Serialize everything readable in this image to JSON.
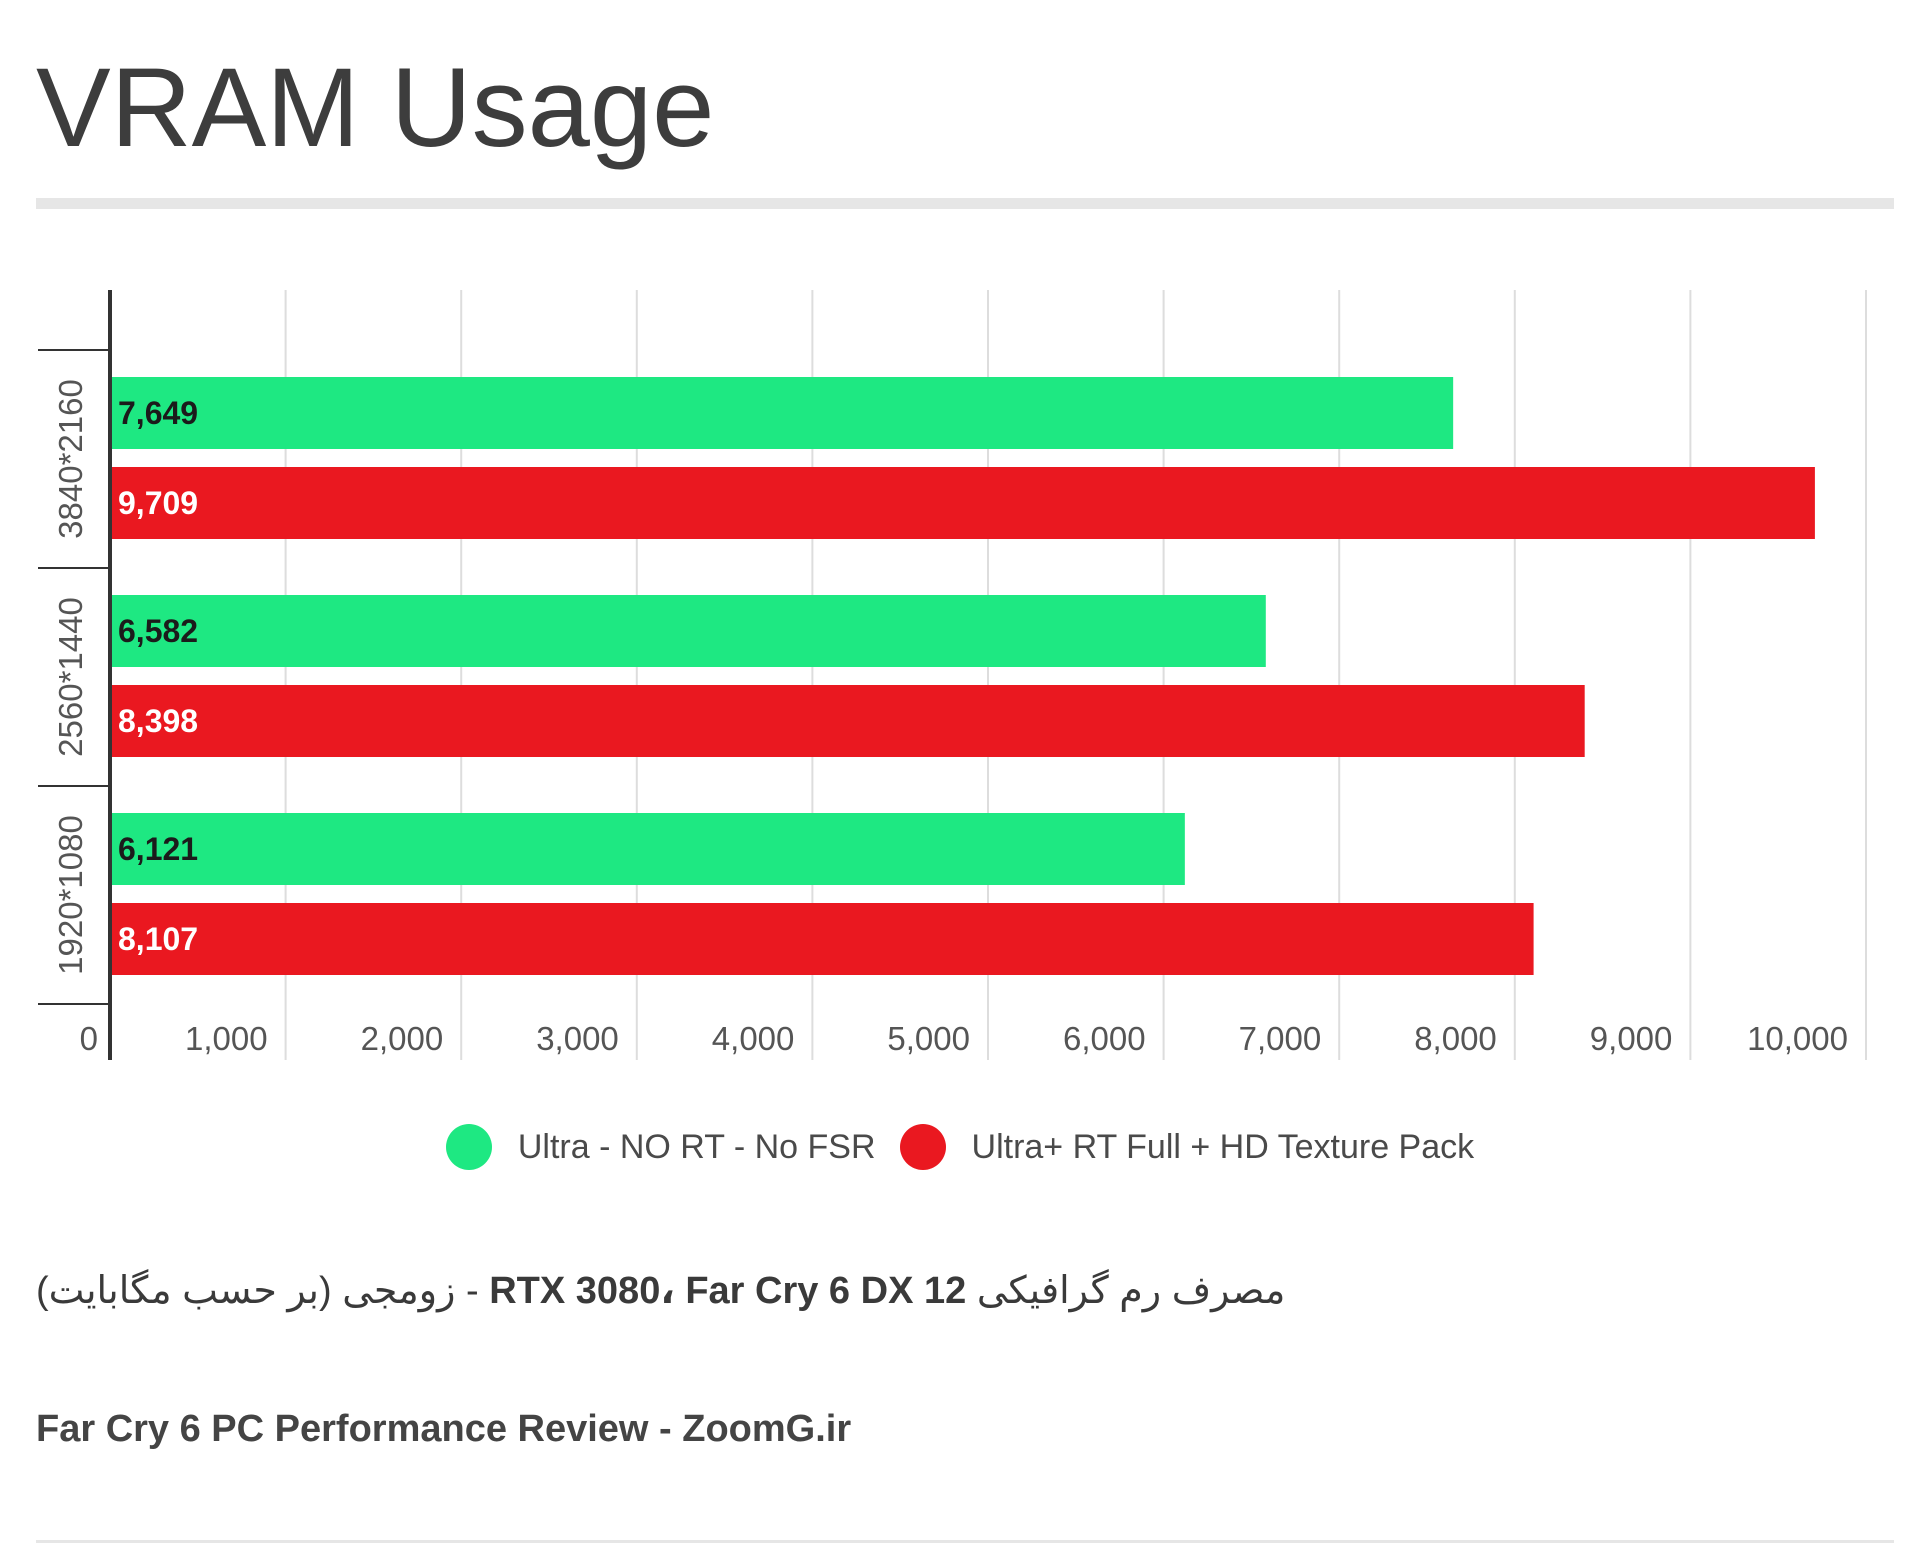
{
  "title": "VRAM Usage",
  "caption_arabic": "مصرف رم گرافیکی",
  "caption_latin": "RTX 3080، Far Cry 6 DX 12",
  "caption_tail": "- زومجی (بر حسب مگابایت)",
  "source": "Far Cry 6 PC Performance Review - ZoomG.ir",
  "colors": {
    "series1": "#1ee882",
    "series2": "#ea1820",
    "grid": "#dddddd",
    "axis": "#333333"
  },
  "chart_data": {
    "type": "bar",
    "orientation": "horizontal",
    "title": "VRAM Usage",
    "categories": [
      "3840*2160",
      "2560*1440",
      "1920*1080"
    ],
    "series": [
      {
        "name": "Ultra - NO RT - No FSR",
        "values": [
          7649,
          6582,
          6121
        ],
        "labels": [
          "7,649",
          "6,582",
          "6,121"
        ]
      },
      {
        "name": "Ultra+ RT Full + HD Texture Pack",
        "values": [
          9709,
          8398,
          8107
        ],
        "labels": [
          "9,709",
          "8,398",
          "8,107"
        ]
      }
    ],
    "xlim": [
      0,
      10000
    ],
    "ticks": [
      0,
      1000,
      2000,
      3000,
      4000,
      5000,
      6000,
      7000,
      8000,
      9000,
      10000
    ],
    "tick_labels": [
      "0",
      "1,000",
      "2,000",
      "3,000",
      "4,000",
      "5,000",
      "6,000",
      "7,000",
      "8,000",
      "9,000",
      "10,000"
    ],
    "grid": true,
    "legend": "bottom"
  }
}
